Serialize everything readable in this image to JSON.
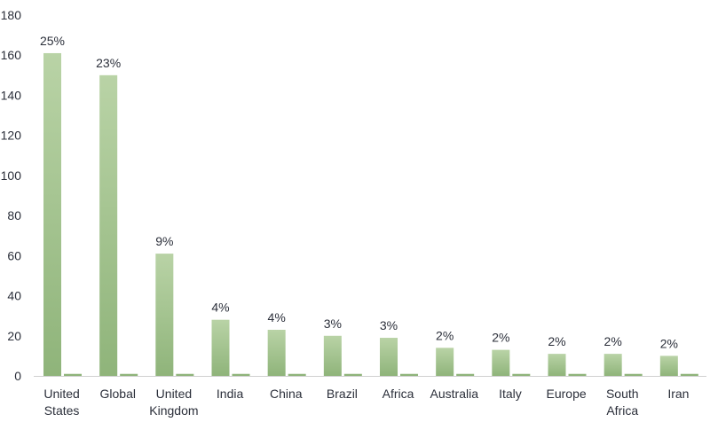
{
  "chart_data": {
    "type": "bar",
    "categories": [
      [
        "United",
        "States"
      ],
      [
        "Global"
      ],
      [
        "United",
        "Kingdom"
      ],
      [
        "India"
      ],
      [
        "China"
      ],
      [
        "Brazil"
      ],
      [
        "Africa"
      ],
      [
        "Australia"
      ],
      [
        "Italy"
      ],
      [
        "Europe"
      ],
      [
        "South",
        "Africa"
      ],
      [
        "Iran"
      ]
    ],
    "series": [
      {
        "values": [
          161,
          150,
          61,
          28,
          23,
          20,
          19,
          14,
          13,
          11,
          11,
          10
        ]
      },
      {
        "values": [
          1,
          1,
          1,
          1,
          1,
          1,
          1,
          1,
          1,
          1,
          1,
          1
        ]
      }
    ],
    "data_labels": [
      "25%",
      "23%",
      "9%",
      "4%",
      "4%",
      "3%",
      "3%",
      "2%",
      "2%",
      "2%",
      "2%",
      "2%"
    ],
    "ylim": [
      0,
      180
    ],
    "yticks": [
      0,
      20,
      40,
      60,
      80,
      100,
      120,
      140,
      160,
      180
    ],
    "grid": false,
    "colors": {
      "bar_top": "#b9d3a6",
      "bar_bottom": "#8fb47a",
      "axis": "#d0d0d0"
    }
  }
}
